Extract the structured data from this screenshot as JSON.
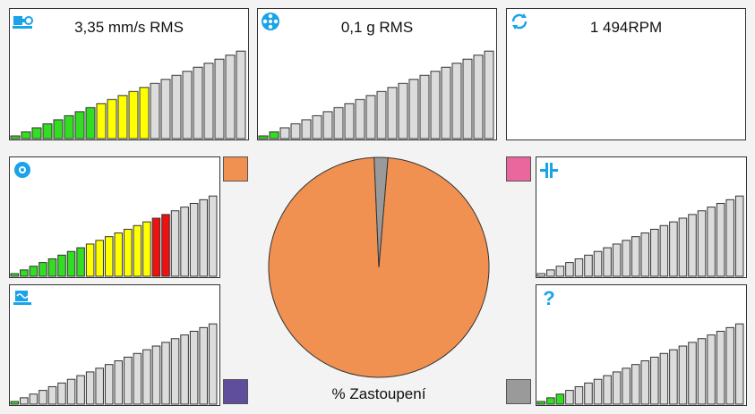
{
  "panels": {
    "velocity": {
      "label": "3,35 mm/s RMS",
      "icon": "motor-pump-icon",
      "level": 0.58,
      "colored": true
    },
    "acceleration": {
      "label": "0,1 g RMS",
      "icon": "bearing-icon",
      "level": 0.1,
      "colored": false
    },
    "speed": {
      "label": "1 494RPM",
      "icon": "rotation-icon"
    },
    "bearing": {
      "label": "",
      "icon": "gear-icon",
      "level": 0.77,
      "colored": true
    },
    "cavitation": {
      "label": "",
      "icon": "cavitation-icon",
      "level": 0.05,
      "colored": false
    },
    "coupling": {
      "label": "",
      "icon": "coupling-icon",
      "level": 0.0,
      "colored": false
    },
    "unknown": {
      "label": "",
      "icon": "question-icon",
      "level": 0.15,
      "colored": false
    }
  },
  "legend_colors": {
    "top_left": "#f09152",
    "bottom_left": "#5e4e9c",
    "top_right": "#e9679c",
    "bottom_right": "#9a9a9a"
  },
  "pie": {
    "label": "% Zastoupení",
    "slices": [
      {
        "value": 98,
        "color": "#f09152"
      },
      {
        "value": 2,
        "color": "#9a9a9a"
      }
    ]
  },
  "colors": {
    "icon": "#1aa3e8",
    "bar_inactive": "#dcdcdc",
    "green": "#33dd22",
    "yellow": "#ffff00",
    "red": "#ee1111"
  }
}
